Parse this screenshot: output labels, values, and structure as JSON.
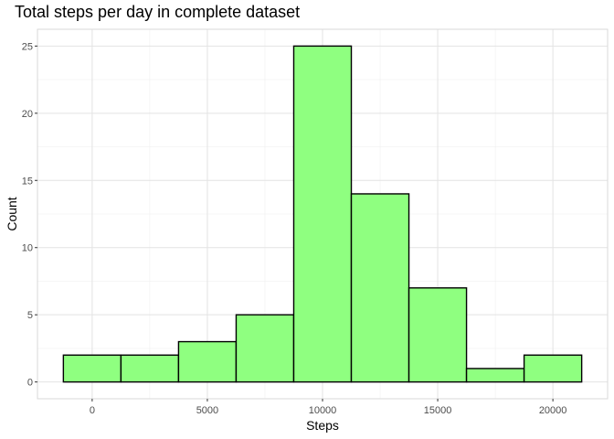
{
  "chart_data": {
    "type": "histogram",
    "title": "Total steps per day in complete dataset",
    "xlabel": "Steps",
    "ylabel": "Count",
    "bin_width": 2500,
    "bins": [
      {
        "start": -1250,
        "end": 1250,
        "count": 2
      },
      {
        "start": 1250,
        "end": 3750,
        "count": 2
      },
      {
        "start": 3750,
        "end": 6250,
        "count": 3
      },
      {
        "start": 6250,
        "end": 8750,
        "count": 5
      },
      {
        "start": 8750,
        "end": 11250,
        "count": 25
      },
      {
        "start": 11250,
        "end": 13750,
        "count": 14
      },
      {
        "start": 13750,
        "end": 16250,
        "count": 7
      },
      {
        "start": 16250,
        "end": 18750,
        "count": 1
      },
      {
        "start": 18750,
        "end": 21250,
        "count": 2
      }
    ],
    "x_ticks": [
      0,
      5000,
      10000,
      15000,
      20000
    ],
    "y_ticks": [
      0,
      5,
      10,
      15,
      20,
      25
    ],
    "xlim": [
      -2375,
      22375
    ],
    "ylim": [
      -1.25,
      26.25
    ],
    "grid": true,
    "colors": {
      "bar_fill": "#8fff80",
      "bar_stroke": "#000000",
      "grid_major": "#e3e3e3",
      "grid_minor": "#f0f0f0",
      "panel_border": "#d9d9d9"
    }
  }
}
